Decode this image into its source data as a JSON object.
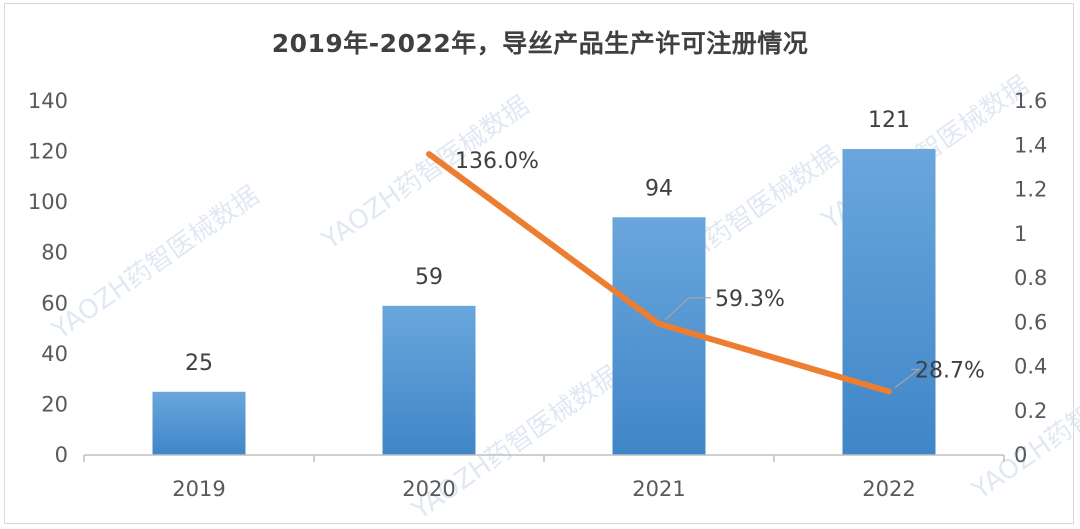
{
  "chart_data": {
    "type": "bar",
    "title": "2019年-2022年，导丝产品生产许可注册情况",
    "categories": [
      "2019",
      "2020",
      "2021",
      "2022"
    ],
    "series": [
      {
        "type": "bar",
        "values": [
          25,
          59,
          94,
          121
        ],
        "labels": [
          "25",
          "59",
          "94",
          "121"
        ],
        "color": "#5b9bd5",
        "axis": "left"
      },
      {
        "type": "line",
        "values": [
          null,
          1.36,
          0.593,
          0.287
        ],
        "labels": [
          "",
          "136.0%",
          "59.3%",
          "28.7%"
        ],
        "color": "#ed7d31",
        "axis": "right"
      }
    ],
    "y_left": {
      "ylim": [
        0,
        140
      ],
      "ticks": [
        "0",
        "20",
        "40",
        "60",
        "80",
        "100",
        "120",
        "140"
      ]
    },
    "y_right": {
      "ylim": [
        0,
        1.6
      ],
      "ticks": [
        "0",
        "0.2",
        "0.4",
        "0.6",
        "0.8",
        "1",
        "1.2",
        "1.4",
        "1.6"
      ]
    },
    "grid": false,
    "legend": "none"
  },
  "watermark": {
    "text": "YAOZH药智医械数据"
  }
}
